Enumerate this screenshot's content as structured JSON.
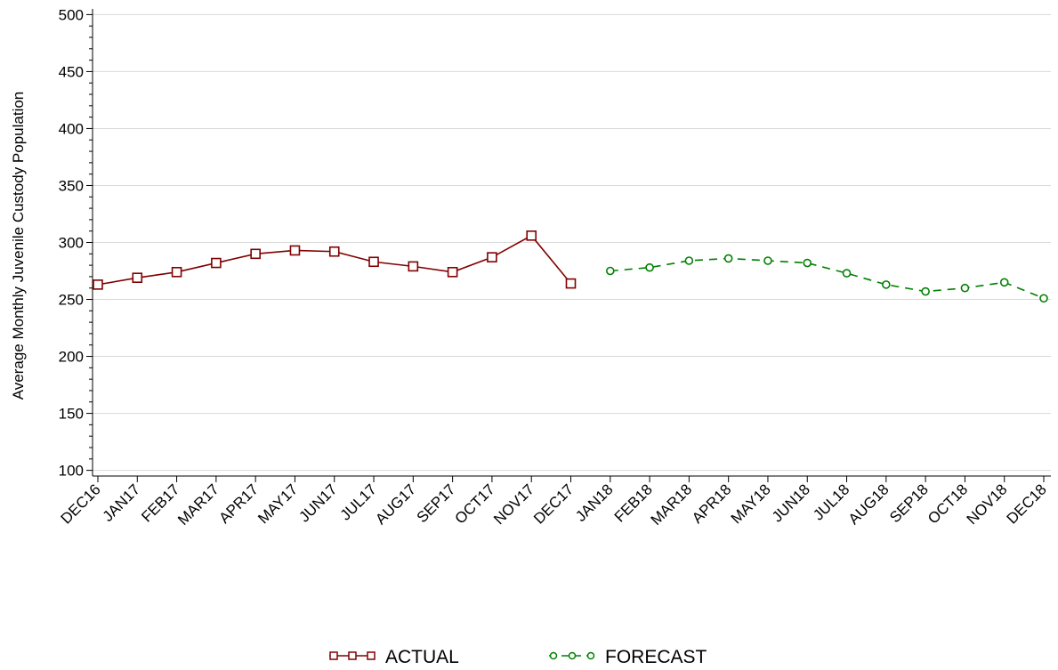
{
  "chart_data": {
    "type": "line",
    "title": "",
    "xlabel": "",
    "ylabel": "Average Monthly Juvenile Custody Population",
    "ylim": [
      95,
      505
    ],
    "yticks": [
      100,
      150,
      200,
      250,
      300,
      350,
      400,
      450,
      500
    ],
    "grid": true,
    "legend_position": "bottom",
    "categories": [
      "DEC16",
      "JAN17",
      "FEB17",
      "MAR17",
      "APR17",
      "MAY17",
      "JUN17",
      "JUL17",
      "AUG17",
      "SEP17",
      "OCT17",
      "NOV17",
      "DEC17",
      "JAN18",
      "FEB18",
      "MAR18",
      "APR18",
      "MAY18",
      "JUN18",
      "JUL18",
      "AUG18",
      "SEP18",
      "OCT18",
      "NOV18",
      "DEC18"
    ],
    "series": [
      {
        "name": "ACTUAL",
        "color": "#800000",
        "marker": "square",
        "line_style": "solid",
        "values": [
          263,
          269,
          274,
          282,
          290,
          293,
          292,
          283,
          279,
          274,
          287,
          306,
          264,
          null,
          null,
          null,
          null,
          null,
          null,
          null,
          null,
          null,
          null,
          null,
          null
        ]
      },
      {
        "name": "FORECAST",
        "color": "#008000",
        "marker": "circle",
        "line_style": "dashed",
        "values": [
          null,
          null,
          null,
          null,
          null,
          null,
          null,
          null,
          null,
          null,
          null,
          null,
          null,
          275,
          278,
          284,
          286,
          284,
          282,
          273,
          263,
          257,
          260,
          265,
          251
        ]
      }
    ]
  }
}
